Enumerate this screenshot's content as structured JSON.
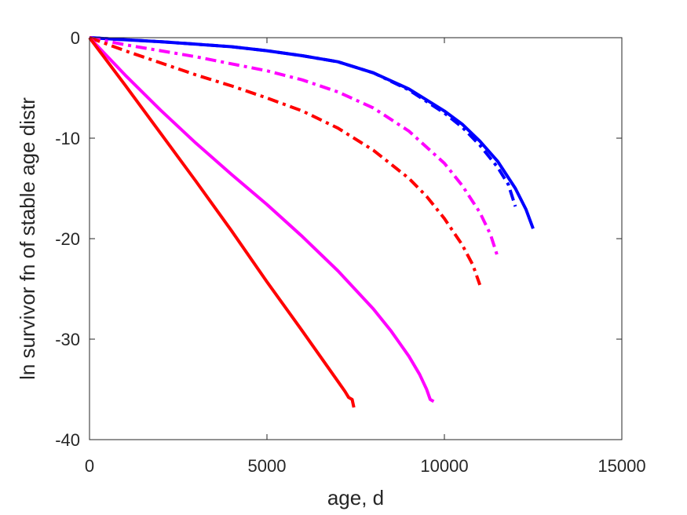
{
  "chart_data": {
    "type": "line",
    "title": "",
    "xlabel": "age, d",
    "ylabel": "ln survivor fn of stable age distr",
    "xlim": [
      0,
      15000
    ],
    "ylim": [
      -40,
      0
    ],
    "xticks": [
      0,
      5000,
      10000,
      15000
    ],
    "yticks": [
      0,
      -10,
      -20,
      -30,
      -40
    ],
    "xtick_labels": [
      "0",
      "5000",
      "10000",
      "15000"
    ],
    "ytick_labels": [
      "0",
      "-10",
      "-20",
      "-30",
      "-40"
    ],
    "grid": false,
    "legend": "none",
    "series": [
      {
        "color": "#0000ff",
        "style": "solid",
        "x": [
          0,
          1000,
          2000,
          3000,
          4000,
          5000,
          6000,
          7000,
          8000,
          9000,
          10000,
          10500,
          11000,
          11500,
          12000,
          12300,
          12500
        ],
        "values": [
          0,
          -0.2,
          -0.4,
          -0.65,
          -0.9,
          -1.3,
          -1.8,
          -2.4,
          -3.5,
          -5.1,
          -7.3,
          -8.6,
          -10.3,
          -12.3,
          -15.0,
          -17.1,
          -19.0
        ]
      },
      {
        "color": "#0000ff",
        "style": "dashdot",
        "x": [
          0,
          1000,
          2000,
          3000,
          4000,
          5000,
          6000,
          7000,
          8000,
          9000,
          10000,
          10500,
          11000,
          11500,
          11800,
          12000
        ],
        "values": [
          0,
          -0.2,
          -0.4,
          -0.65,
          -0.9,
          -1.3,
          -1.8,
          -2.4,
          -3.5,
          -5.2,
          -7.5,
          -8.9,
          -10.7,
          -12.9,
          -14.6,
          -16.8
        ]
      },
      {
        "color": "#ff00ff",
        "style": "dashdot",
        "x": [
          0,
          1000,
          2000,
          3000,
          4000,
          5000,
          6000,
          7000,
          8000,
          9000,
          10000,
          10500,
          11000,
          11300,
          11500
        ],
        "values": [
          0,
          -0.7,
          -1.3,
          -1.9,
          -2.6,
          -3.3,
          -4.2,
          -5.4,
          -7.0,
          -9.3,
          -12.5,
          -14.7,
          -17.4,
          -19.6,
          -21.8
        ]
      },
      {
        "color": "#ff0000",
        "style": "dashdot",
        "x": [
          0,
          1000,
          2000,
          3000,
          4000,
          5000,
          6000,
          7000,
          8000,
          9000,
          9500,
          10000,
          10500,
          10800,
          11000
        ],
        "values": [
          0,
          -1.3,
          -2.5,
          -3.7,
          -4.8,
          -6.0,
          -7.3,
          -9.0,
          -11.2,
          -14.0,
          -15.8,
          -18.0,
          -20.6,
          -22.6,
          -24.6
        ]
      },
      {
        "color": "#ff00ff",
        "style": "solid",
        "x": [
          0,
          1000,
          2000,
          3000,
          4000,
          5000,
          6000,
          7000,
          8000,
          8500,
          9000,
          9300,
          9500,
          9600,
          9700
        ],
        "values": [
          0,
          -3.7,
          -7.2,
          -10.5,
          -13.6,
          -16.6,
          -19.8,
          -23.2,
          -27.0,
          -29.2,
          -31.7,
          -33.5,
          -35.0,
          -36.0,
          -36.2
        ]
      },
      {
        "color": "#ff0000",
        "style": "solid",
        "x": [
          0,
          1000,
          2000,
          3000,
          4000,
          5000,
          6000,
          6500,
          7000,
          7200,
          7300,
          7400,
          7450
        ],
        "values": [
          0,
          -4.7,
          -9.5,
          -14.3,
          -19.2,
          -24.3,
          -29.2,
          -31.7,
          -34.2,
          -35.2,
          -35.8,
          -36.0,
          -36.8
        ]
      }
    ]
  }
}
